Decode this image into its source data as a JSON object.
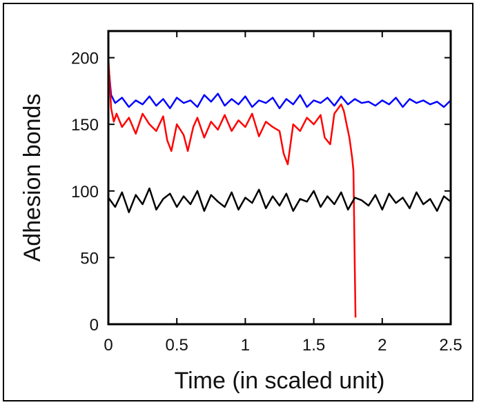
{
  "chart_data": {
    "type": "line",
    "title": "",
    "xlabel": "Time (in scaled unit)",
    "ylabel": "Adhesion bonds",
    "xlim": [
      0,
      2.5
    ],
    "ylim": [
      0,
      220
    ],
    "xticks": [
      0,
      0.5,
      1,
      1.5,
      2,
      2.5
    ],
    "xtick_labels": [
      "0",
      "0.5",
      "1",
      "1.5",
      "2",
      "2.5"
    ],
    "yticks": [
      0,
      50,
      100,
      150,
      200
    ],
    "ytick_labels": [
      "0",
      "50",
      "100",
      "150",
      "200"
    ],
    "grid": false,
    "legend": "none",
    "series": [
      {
        "color": "#0000ff",
        "x": [
          0,
          0.02,
          0.05,
          0.1,
          0.15,
          0.2,
          0.25,
          0.3,
          0.35,
          0.4,
          0.45,
          0.5,
          0.55,
          0.6,
          0.65,
          0.7,
          0.75,
          0.8,
          0.85,
          0.9,
          0.95,
          1.0,
          1.05,
          1.1,
          1.15,
          1.2,
          1.25,
          1.3,
          1.35,
          1.4,
          1.45,
          1.5,
          1.55,
          1.6,
          1.65,
          1.7,
          1.75,
          1.8,
          1.85,
          1.9,
          1.95,
          2.0,
          2.05,
          2.1,
          2.15,
          2.2,
          2.25,
          2.3,
          2.35,
          2.4,
          2.45,
          2.5
        ],
        "values": [
          195,
          172,
          166,
          170,
          163,
          168,
          165,
          171,
          164,
          169,
          162,
          170,
          166,
          168,
          163,
          172,
          167,
          173,
          164,
          169,
          165,
          171,
          163,
          168,
          166,
          170,
          162,
          169,
          165,
          172,
          163,
          168,
          166,
          170,
          164,
          171,
          165,
          169,
          166,
          167,
          164,
          168,
          165,
          170,
          163,
          169,
          166,
          168,
          165,
          167,
          163,
          168
        ]
      },
      {
        "color": "#ff0000",
        "x": [
          0,
          0.02,
          0.04,
          0.06,
          0.1,
          0.15,
          0.2,
          0.25,
          0.3,
          0.35,
          0.4,
          0.43,
          0.46,
          0.5,
          0.55,
          0.58,
          0.62,
          0.65,
          0.7,
          0.75,
          0.8,
          0.85,
          0.9,
          0.95,
          1.0,
          1.05,
          1.1,
          1.15,
          1.2,
          1.25,
          1.28,
          1.31,
          1.35,
          1.4,
          1.45,
          1.5,
          1.55,
          1.58,
          1.62,
          1.65,
          1.7,
          1.72,
          1.74,
          1.76,
          1.78,
          1.79,
          1.8,
          1.805
        ],
        "values": [
          200,
          162,
          152,
          158,
          148,
          155,
          143,
          158,
          150,
          145,
          156,
          138,
          130,
          150,
          142,
          130,
          148,
          155,
          140,
          152,
          146,
          157,
          145,
          153,
          148,
          158,
          141,
          152,
          148,
          145,
          128,
          120,
          150,
          145,
          155,
          150,
          157,
          140,
          135,
          158,
          165,
          160,
          150,
          140,
          125,
          115,
          40,
          5
        ]
      },
      {
        "color": "#000000",
        "x": [
          0,
          0.05,
          0.1,
          0.15,
          0.2,
          0.25,
          0.3,
          0.35,
          0.4,
          0.45,
          0.5,
          0.55,
          0.6,
          0.65,
          0.7,
          0.75,
          0.8,
          0.85,
          0.9,
          0.95,
          1.0,
          1.05,
          1.1,
          1.15,
          1.2,
          1.25,
          1.3,
          1.35,
          1.4,
          1.45,
          1.5,
          1.55,
          1.6,
          1.65,
          1.7,
          1.75,
          1.8,
          1.85,
          1.9,
          1.95,
          2.0,
          2.05,
          2.1,
          2.15,
          2.2,
          2.25,
          2.3,
          2.35,
          2.4,
          2.45,
          2.5
        ],
        "values": [
          95,
          88,
          99,
          84,
          97,
          90,
          102,
          86,
          94,
          98,
          88,
          96,
          90,
          100,
          85,
          97,
          92,
          88,
          99,
          86,
          95,
          91,
          101,
          87,
          96,
          89,
          98,
          85,
          94,
          92,
          100,
          88,
          96,
          90,
          99,
          86,
          95,
          93,
          89,
          97,
          86,
          98,
          91,
          95,
          87,
          99,
          90,
          94,
          85,
          96,
          92
        ]
      }
    ]
  }
}
